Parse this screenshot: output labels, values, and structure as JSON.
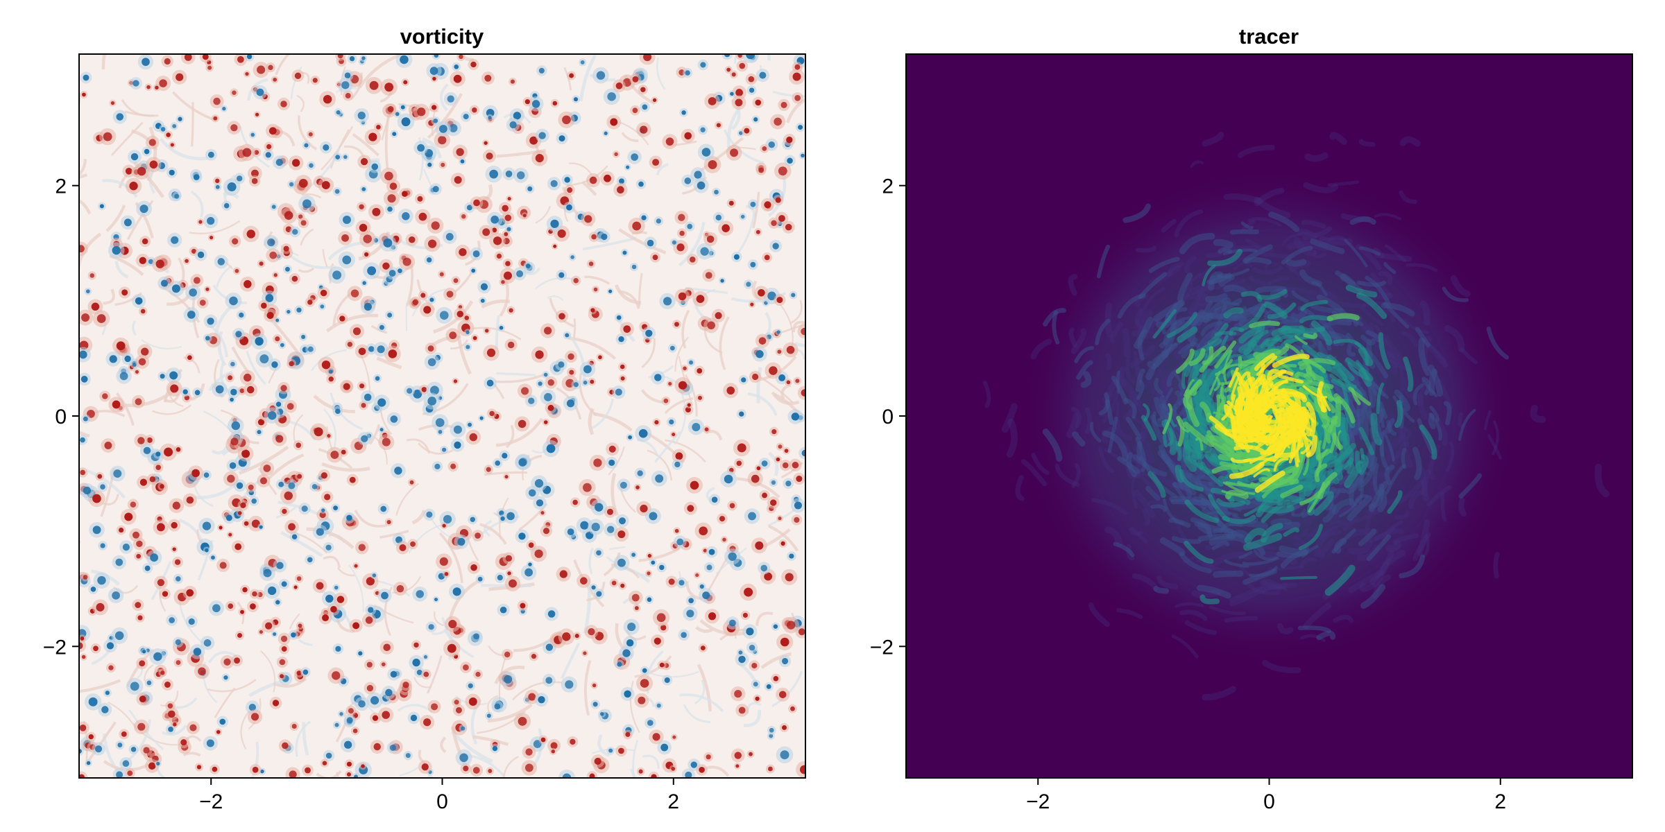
{
  "chart_data": [
    {
      "type": "heatmap",
      "title": "vorticity",
      "xlabel": "",
      "ylabel": "",
      "xlim": [
        -3.14159,
        3.14159
      ],
      "ylim": [
        -3.14159,
        3.14159
      ],
      "x_ticks": [
        -2,
        0,
        2
      ],
      "y_ticks": [
        -2,
        0,
        2
      ],
      "x_tick_labels": [
        "−2",
        "0",
        "2"
      ],
      "y_tick_labels": [
        "−2",
        "0",
        "2"
      ],
      "grid": false,
      "colormap": "balance (blue–white–red)",
      "colors": {
        "negative": "#1e6fa8",
        "zero": "#f6efec",
        "positive": "#b01a18"
      },
      "field_description": "many small, randomly scattered point vortices of both signs over a pale background"
    },
    {
      "type": "heatmap",
      "title": "tracer",
      "xlabel": "",
      "ylabel": "",
      "xlim": [
        -3.14159,
        3.14159
      ],
      "ylim": [
        -3.14159,
        3.14159
      ],
      "x_ticks": [
        -2,
        0,
        2
      ],
      "y_ticks": [
        -2,
        0,
        2
      ],
      "x_tick_labels": [
        "−2",
        "0",
        "2"
      ],
      "y_tick_labels": [
        "−2",
        "0",
        "2"
      ],
      "grid": false,
      "colormap": "viridis",
      "colors": {
        "low": "#440154",
        "mid_low": "#3b528b",
        "mid": "#21918c",
        "mid_high": "#5ec962",
        "high": "#fde725"
      },
      "blob_center": [
        0.0,
        0.0
      ],
      "blob_extent": 1.3,
      "field_description": "turbulently stirred tracer patch concentrated near the origin on a dark background"
    }
  ]
}
